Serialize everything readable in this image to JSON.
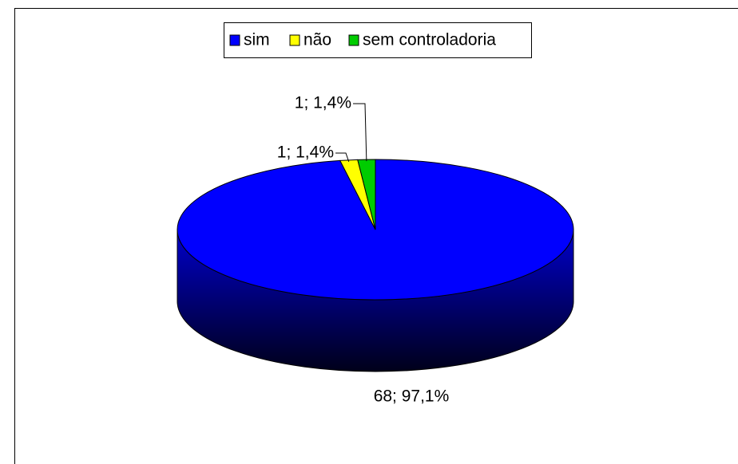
{
  "chart_data": {
    "type": "pie",
    "categories": [
      "sim",
      "não",
      "sem controladoria"
    ],
    "values": [
      68,
      1,
      1
    ],
    "value_labels": [
      "68; 97,1%",
      "1; 1,4%",
      "1; 1,4%"
    ],
    "colors": [
      "#0000ff",
      "#ffff00",
      "#00cc00"
    ],
    "legend": "top"
  }
}
